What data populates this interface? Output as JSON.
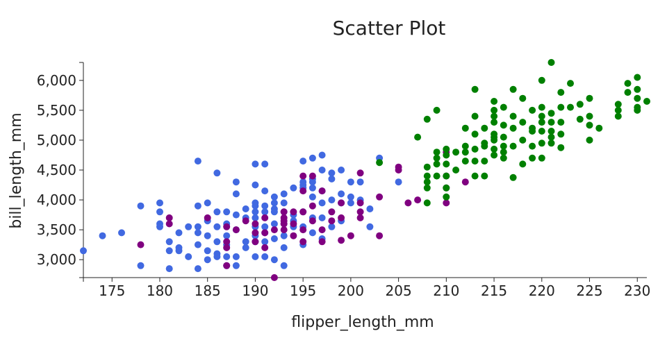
{
  "chart_data": {
    "type": "scatter",
    "title": "Scatter Plot",
    "xlabel": "flipper_length_mm",
    "ylabel": "bill_length_mm",
    "xlim": [
      172,
      231
    ],
    "ylim": [
      2700,
      6300
    ],
    "x_ticks": [
      175,
      180,
      185,
      190,
      195,
      200,
      205,
      210,
      215,
      220,
      225,
      230
    ],
    "x_tick_labels": [
      "175",
      "180",
      "185",
      "190",
      "195",
      "200",
      "205",
      "210",
      "215",
      "220",
      "225",
      "230"
    ],
    "y_ticks": [
      3000,
      3500,
      4000,
      4500,
      5000,
      5500,
      6000
    ],
    "y_tick_labels": [
      "3,000",
      "3,500",
      "4,000",
      "4,500",
      "5,000",
      "5,500",
      "6,000"
    ],
    "grid": false,
    "legend": "none",
    "series": [
      {
        "color": "#4169e1",
        "points": [
          [
            172,
            3150
          ],
          [
            174,
            3400
          ],
          [
            176,
            3450
          ],
          [
            178,
            3900
          ],
          [
            178,
            2900
          ],
          [
            180,
            3950
          ],
          [
            180,
            3800
          ],
          [
            180,
            3600
          ],
          [
            180,
            3550
          ],
          [
            181,
            3300
          ],
          [
            181,
            3150
          ],
          [
            181,
            2850
          ],
          [
            182,
            3450
          ],
          [
            182,
            3200
          ],
          [
            182,
            3150
          ],
          [
            183,
            3550
          ],
          [
            183,
            3050
          ],
          [
            184,
            4650
          ],
          [
            184,
            3900
          ],
          [
            184,
            3550
          ],
          [
            184,
            3450
          ],
          [
            184,
            3250
          ],
          [
            184,
            2850
          ],
          [
            185,
            3950
          ],
          [
            185,
            3650
          ],
          [
            185,
            3400
          ],
          [
            185,
            3150
          ],
          [
            185,
            3000
          ],
          [
            186,
            4450
          ],
          [
            186,
            3800
          ],
          [
            186,
            3550
          ],
          [
            186,
            3300
          ],
          [
            186,
            3100
          ],
          [
            186,
            3050
          ],
          [
            187,
            3800
          ],
          [
            187,
            3600
          ],
          [
            187,
            3400
          ],
          [
            187,
            3250
          ],
          [
            187,
            3050
          ],
          [
            187,
            2900
          ],
          [
            188,
            4300
          ],
          [
            188,
            4100
          ],
          [
            188,
            3750
          ],
          [
            188,
            3500
          ],
          [
            188,
            3050
          ],
          [
            188,
            2900
          ],
          [
            189,
            3850
          ],
          [
            189,
            3700
          ],
          [
            189,
            3300
          ],
          [
            189,
            3200
          ],
          [
            190,
            4600
          ],
          [
            190,
            4250
          ],
          [
            190,
            3950
          ],
          [
            190,
            3900
          ],
          [
            190,
            3800
          ],
          [
            190,
            3700
          ],
          [
            190,
            3550
          ],
          [
            190,
            3400
          ],
          [
            190,
            3300
          ],
          [
            190,
            3050
          ],
          [
            191,
            4600
          ],
          [
            191,
            4150
          ],
          [
            191,
            3900
          ],
          [
            191,
            3800
          ],
          [
            191,
            3550
          ],
          [
            191,
            3450
          ],
          [
            191,
            3300
          ],
          [
            191,
            3050
          ],
          [
            192,
            4050
          ],
          [
            192,
            3950
          ],
          [
            192,
            3850
          ],
          [
            192,
            3800
          ],
          [
            192,
            3600
          ],
          [
            192,
            3350
          ],
          [
            192,
            3000
          ],
          [
            193,
            4100
          ],
          [
            193,
            3950
          ],
          [
            193,
            3800
          ],
          [
            193,
            3600
          ],
          [
            193,
            3400
          ],
          [
            193,
            3200
          ],
          [
            193,
            2900
          ],
          [
            194,
            4200
          ],
          [
            194,
            3750
          ],
          [
            194,
            3650
          ],
          [
            194,
            3550
          ],
          [
            195,
            4650
          ],
          [
            195,
            4300
          ],
          [
            195,
            4250
          ],
          [
            195,
            4200
          ],
          [
            195,
            3800
          ],
          [
            195,
            3550
          ],
          [
            195,
            3250
          ],
          [
            196,
            4700
          ],
          [
            196,
            4350
          ],
          [
            196,
            4300
          ],
          [
            196,
            4200
          ],
          [
            196,
            4050
          ],
          [
            196,
            3700
          ],
          [
            196,
            3450
          ],
          [
            197,
            4750
          ],
          [
            197,
            4500
          ],
          [
            197,
            4150
          ],
          [
            197,
            3950
          ],
          [
            197,
            3700
          ],
          [
            197,
            3350
          ],
          [
            198,
            4450
          ],
          [
            198,
            4350
          ],
          [
            198,
            4000
          ],
          [
            198,
            3550
          ],
          [
            199,
            4500
          ],
          [
            199,
            4100
          ],
          [
            199,
            3950
          ],
          [
            199,
            3650
          ],
          [
            200,
            4300
          ],
          [
            200,
            4050
          ],
          [
            200,
            3950
          ],
          [
            201,
            4300
          ],
          [
            201,
            4000
          ],
          [
            202,
            3850
          ],
          [
            202,
            3550
          ],
          [
            203,
            4700
          ],
          [
            205,
            4300
          ]
        ]
      },
      {
        "color": "#800080",
        "points": [
          [
            178,
            3250
          ],
          [
            181,
            3700
          ],
          [
            181,
            3600
          ],
          [
            185,
            3700
          ],
          [
            187,
            3550
          ],
          [
            187,
            3300
          ],
          [
            187,
            3200
          ],
          [
            187,
            2900
          ],
          [
            188,
            3500
          ],
          [
            189,
            3650
          ],
          [
            190,
            3600
          ],
          [
            190,
            3450
          ],
          [
            190,
            3300
          ],
          [
            191,
            3700
          ],
          [
            191,
            3450
          ],
          [
            191,
            3200
          ],
          [
            192,
            3500
          ],
          [
            192,
            2700
          ],
          [
            193,
            3800
          ],
          [
            193,
            3700
          ],
          [
            193,
            3650
          ],
          [
            193,
            3600
          ],
          [
            193,
            3500
          ],
          [
            194,
            3800
          ],
          [
            194,
            3600
          ],
          [
            194,
            3400
          ],
          [
            195,
            4400
          ],
          [
            195,
            4150
          ],
          [
            195,
            3800
          ],
          [
            195,
            3500
          ],
          [
            195,
            3300
          ],
          [
            196,
            4400
          ],
          [
            196,
            3900
          ],
          [
            196,
            3650
          ],
          [
            197,
            4150
          ],
          [
            197,
            3500
          ],
          [
            197,
            3300
          ],
          [
            198,
            3800
          ],
          [
            198,
            3650
          ],
          [
            199,
            3950
          ],
          [
            199,
            3700
          ],
          [
            199,
            3325
          ],
          [
            200,
            3400
          ],
          [
            201,
            4450
          ],
          [
            201,
            3950
          ],
          [
            201,
            3800
          ],
          [
            201,
            3700
          ],
          [
            203,
            4050
          ],
          [
            203,
            3400
          ],
          [
            205,
            4550
          ],
          [
            205,
            4500
          ],
          [
            206,
            3950
          ],
          [
            207,
            4000
          ],
          [
            210,
            4800
          ],
          [
            210,
            4400
          ],
          [
            210,
            4200
          ],
          [
            210,
            3950
          ],
          [
            212,
            4300
          ]
        ]
      },
      {
        "color": "#008000",
        "points": [
          [
            203,
            4625
          ],
          [
            207,
            5050
          ],
          [
            208,
            5350
          ],
          [
            208,
            4550
          ],
          [
            208,
            4400
          ],
          [
            208,
            4300
          ],
          [
            208,
            4200
          ],
          [
            208,
            3950
          ],
          [
            209,
            5500
          ],
          [
            209,
            4800
          ],
          [
            209,
            4700
          ],
          [
            209,
            4600
          ],
          [
            209,
            4400
          ],
          [
            210,
            4850
          ],
          [
            210,
            4750
          ],
          [
            210,
            4600
          ],
          [
            210,
            4400
          ],
          [
            210,
            4200
          ],
          [
            210,
            4050
          ],
          [
            211,
            4800
          ],
          [
            211,
            4500
          ],
          [
            212,
            5200
          ],
          [
            212,
            4900
          ],
          [
            212,
            4800
          ],
          [
            212,
            4650
          ],
          [
            213,
            5850
          ],
          [
            213,
            5400
          ],
          [
            213,
            5100
          ],
          [
            213,
            4850
          ],
          [
            213,
            4650
          ],
          [
            213,
            4400
          ],
          [
            214,
            5200
          ],
          [
            214,
            4950
          ],
          [
            214,
            4900
          ],
          [
            214,
            4650
          ],
          [
            214,
            4400
          ],
          [
            215,
            5650
          ],
          [
            215,
            5500
          ],
          [
            215,
            5400
          ],
          [
            215,
            5300
          ],
          [
            215,
            5100
          ],
          [
            215,
            5050
          ],
          [
            215,
            5000
          ],
          [
            215,
            4850
          ],
          [
            215,
            4750
          ],
          [
            216,
            5550
          ],
          [
            216,
            5250
          ],
          [
            216,
            5050
          ],
          [
            216,
            4900
          ],
          [
            216,
            4800
          ],
          [
            216,
            4700
          ],
          [
            217,
            5850
          ],
          [
            217,
            5400
          ],
          [
            217,
            5200
          ],
          [
            217,
            4900
          ],
          [
            217,
            4375
          ],
          [
            218,
            5700
          ],
          [
            218,
            5300
          ],
          [
            218,
            5000
          ],
          [
            218,
            4600
          ],
          [
            219,
            5500
          ],
          [
            219,
            5200
          ],
          [
            219,
            5150
          ],
          [
            219,
            4900
          ],
          [
            219,
            4700
          ],
          [
            220,
            6000
          ],
          [
            220,
            5550
          ],
          [
            220,
            5400
          ],
          [
            220,
            5300
          ],
          [
            220,
            5150
          ],
          [
            220,
            4950
          ],
          [
            220,
            4700
          ],
          [
            221,
            6300
          ],
          [
            221,
            5450
          ],
          [
            221,
            5300
          ],
          [
            221,
            5150
          ],
          [
            221,
            5050
          ],
          [
            221,
            4950
          ],
          [
            222,
            5800
          ],
          [
            222,
            5550
          ],
          [
            222,
            5300
          ],
          [
            222,
            5100
          ],
          [
            222,
            4875
          ],
          [
            223,
            5950
          ],
          [
            223,
            5550
          ],
          [
            224,
            5600
          ],
          [
            224,
            5350
          ],
          [
            225,
            5700
          ],
          [
            225,
            5400
          ],
          [
            225,
            5250
          ],
          [
            225,
            5000
          ],
          [
            226,
            5200
          ],
          [
            228,
            5600
          ],
          [
            228,
            5500
          ],
          [
            228,
            5400
          ],
          [
            229,
            5950
          ],
          [
            229,
            5800
          ],
          [
            230,
            6050
          ],
          [
            230,
            5850
          ],
          [
            230,
            5700
          ],
          [
            230,
            5550
          ],
          [
            230,
            5500
          ],
          [
            231,
            5650
          ]
        ]
      }
    ]
  }
}
